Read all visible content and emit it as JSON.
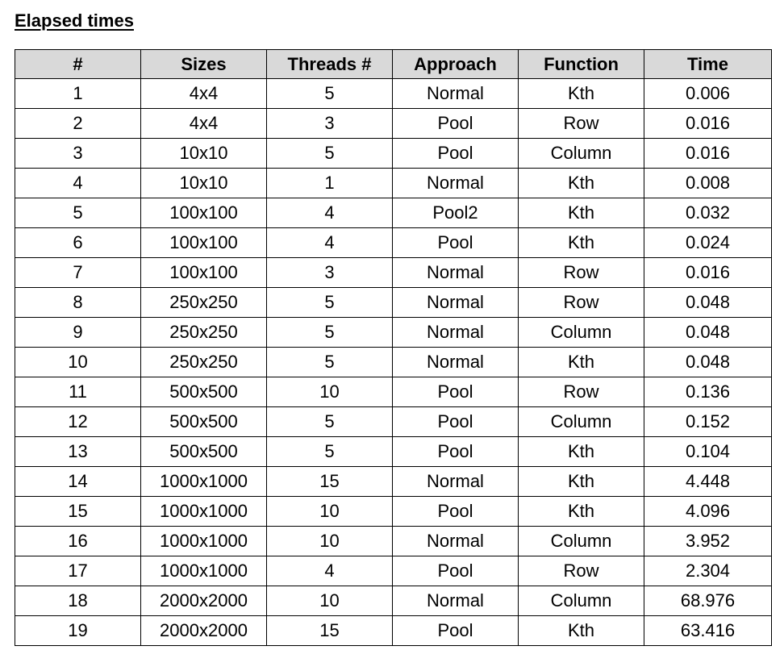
{
  "title": "Elapsed times",
  "table": {
    "headers": [
      "#",
      "Sizes",
      "Threads #",
      "Approach",
      "Function",
      "Time"
    ],
    "rows": [
      [
        "1",
        "4x4",
        "5",
        "Normal",
        "Kth",
        "0.006"
      ],
      [
        "2",
        "4x4",
        "3",
        "Pool",
        "Row",
        "0.016"
      ],
      [
        "3",
        "10x10",
        "5",
        "Pool",
        "Column",
        "0.016"
      ],
      [
        "4",
        "10x10",
        "1",
        "Normal",
        "Kth",
        "0.008"
      ],
      [
        "5",
        "100x100",
        "4",
        "Pool2",
        "Kth",
        "0.032"
      ],
      [
        "6",
        "100x100",
        "4",
        "Pool",
        "Kth",
        "0.024"
      ],
      [
        "7",
        "100x100",
        "3",
        "Normal",
        "Row",
        "0.016"
      ],
      [
        "8",
        "250x250",
        "5",
        "Normal",
        "Row",
        "0.048"
      ],
      [
        "9",
        "250x250",
        "5",
        "Normal",
        "Column",
        "0.048"
      ],
      [
        "10",
        "250x250",
        "5",
        "Normal",
        "Kth",
        "0.048"
      ],
      [
        "11",
        "500x500",
        "10",
        "Pool",
        "Row",
        "0.136"
      ],
      [
        "12",
        "500x500",
        "5",
        "Pool",
        "Column",
        "0.152"
      ],
      [
        "13",
        "500x500",
        "5",
        "Pool",
        "Kth",
        "0.104"
      ],
      [
        "14",
        "1000x1000",
        "15",
        "Normal",
        "Kth",
        "4.448"
      ],
      [
        "15",
        "1000x1000",
        "10",
        "Pool",
        "Kth",
        "4.096"
      ],
      [
        "16",
        "1000x1000",
        "10",
        "Normal",
        "Column",
        "3.952"
      ],
      [
        "17",
        "1000x1000",
        "4",
        "Pool",
        "Row",
        "2.304"
      ],
      [
        "18",
        "2000x2000",
        "10",
        "Normal",
        "Column",
        "68.976"
      ],
      [
        "19",
        "2000x2000",
        "15",
        "Pool",
        "Kth",
        "63.416"
      ]
    ]
  },
  "colors": {
    "header_bg": "#d9d9d9",
    "border": "#000000",
    "text": "#000000"
  }
}
